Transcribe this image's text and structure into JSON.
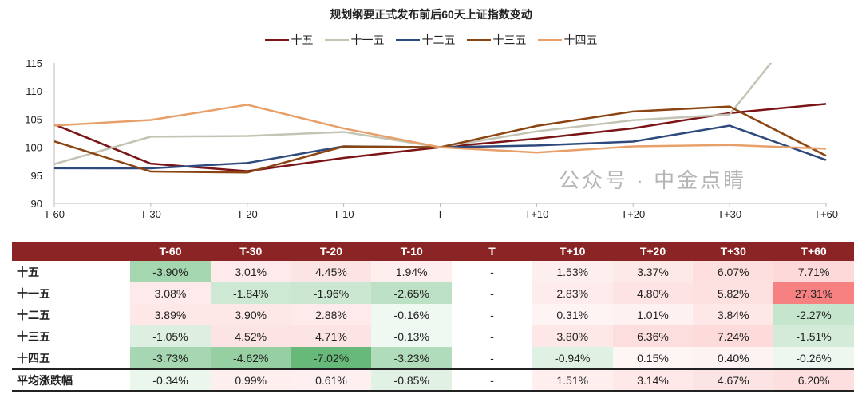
{
  "chart_data": {
    "type": "line",
    "title": "规划纲要正式发布前后60天上证指数变动",
    "categories": [
      "T-60",
      "T-30",
      "T-20",
      "T-10",
      "T",
      "T+10",
      "T+20",
      "T+30",
      "T+60"
    ],
    "ylim": [
      90,
      115
    ],
    "yticks": [
      90,
      95,
      100,
      105,
      110,
      115
    ],
    "legend_position": "top",
    "series": [
      {
        "name": "十五",
        "color": "#7b1416",
        "values": [
          104.06,
          97.08,
          95.74,
          98.1,
          100,
          101.53,
          103.37,
          106.07,
          107.71
        ]
      },
      {
        "name": "十一五",
        "color": "#c4c4b4",
        "values": [
          97.01,
          101.87,
          102.0,
          102.72,
          100,
          102.83,
          104.8,
          105.82,
          127.31
        ]
      },
      {
        "name": "十二五",
        "color": "#2e4a7d",
        "values": [
          96.26,
          96.25,
          97.2,
          100.16,
          100,
          100.31,
          101.01,
          103.84,
          97.73
        ]
      },
      {
        "name": "十三五",
        "color": "#8b4513",
        "values": [
          101.06,
          95.68,
          95.5,
          100.13,
          100,
          103.8,
          106.36,
          107.24,
          98.49
        ]
      },
      {
        "name": "十四五",
        "color": "#e8a06a",
        "values": [
          103.87,
          104.84,
          107.55,
          103.34,
          100,
          99.06,
          100.15,
          100.4,
          99.74
        ]
      }
    ]
  },
  "table": {
    "headers": [
      "",
      "T-60",
      "T-30",
      "T-20",
      "T-10",
      "T",
      "T+10",
      "T+20",
      "T+30",
      "T+60"
    ],
    "rows": [
      [
        "十五",
        "-3.90%",
        "3.01%",
        "4.45%",
        "1.94%",
        "-",
        "1.53%",
        "3.37%",
        "6.07%",
        "7.71%"
      ],
      [
        "十一五",
        "3.08%",
        "-1.84%",
        "-1.96%",
        "-2.65%",
        "-",
        "2.83%",
        "4.80%",
        "5.82%",
        "27.31%"
      ],
      [
        "十二五",
        "3.89%",
        "3.90%",
        "2.88%",
        "-0.16%",
        "-",
        "0.31%",
        "1.01%",
        "3.84%",
        "-2.27%"
      ],
      [
        "十三五",
        "-1.05%",
        "4.52%",
        "4.71%",
        "-0.13%",
        "-",
        "3.80%",
        "6.36%",
        "7.24%",
        "-1.51%"
      ],
      [
        "十四五",
        "-3.73%",
        "-4.62%",
        "-7.02%",
        "-3.23%",
        "-",
        "-0.94%",
        "0.15%",
        "0.40%",
        "-0.26%"
      ],
      [
        "平均涨跌幅",
        "-0.34%",
        "0.99%",
        "0.61%",
        "-0.85%",
        "-",
        "1.51%",
        "3.14%",
        "4.67%",
        "6.20%"
      ]
    ]
  },
  "watermark": "公众号 · 中金点睛"
}
